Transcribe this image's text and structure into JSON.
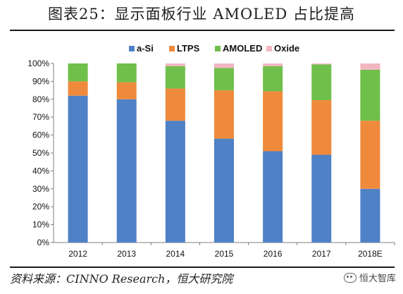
{
  "header": {
    "title": "图表25：显示面板行业 AMOLED 占比提高"
  },
  "footer": {
    "source": "资料来源：CINNO Research，恒大研究院",
    "watermark": "恒大智库"
  },
  "colors": {
    "a-Si": "#4e81c6",
    "LTPS": "#ef8a3c",
    "AMOLED": "#6fbf4a",
    "Oxide": "#f2b6c0"
  },
  "chart_data": {
    "type": "bar",
    "stacked": true,
    "categories": [
      "2012",
      "2013",
      "2014",
      "2015",
      "2016",
      "2017",
      "2018E"
    ],
    "series": [
      {
        "name": "a-Si",
        "values": [
          82,
          80,
          68,
          58,
          51,
          49,
          30
        ]
      },
      {
        "name": "LTPS",
        "values": [
          8,
          9.5,
          18,
          27,
          33.5,
          30.5,
          38
        ]
      },
      {
        "name": "AMOLED",
        "values": [
          10,
          10.5,
          12.5,
          12.5,
          14,
          20,
          28.5
        ]
      },
      {
        "name": "Oxide",
        "values": [
          0,
          0,
          1.5,
          2.5,
          1.5,
          0.5,
          3.5
        ]
      }
    ],
    "yticks": [
      "0%",
      "10%",
      "20%",
      "30%",
      "40%",
      "50%",
      "60%",
      "70%",
      "80%",
      "90%",
      "100%"
    ],
    "ylim": [
      0,
      100
    ],
    "legend_position": "top",
    "grid": false
  }
}
